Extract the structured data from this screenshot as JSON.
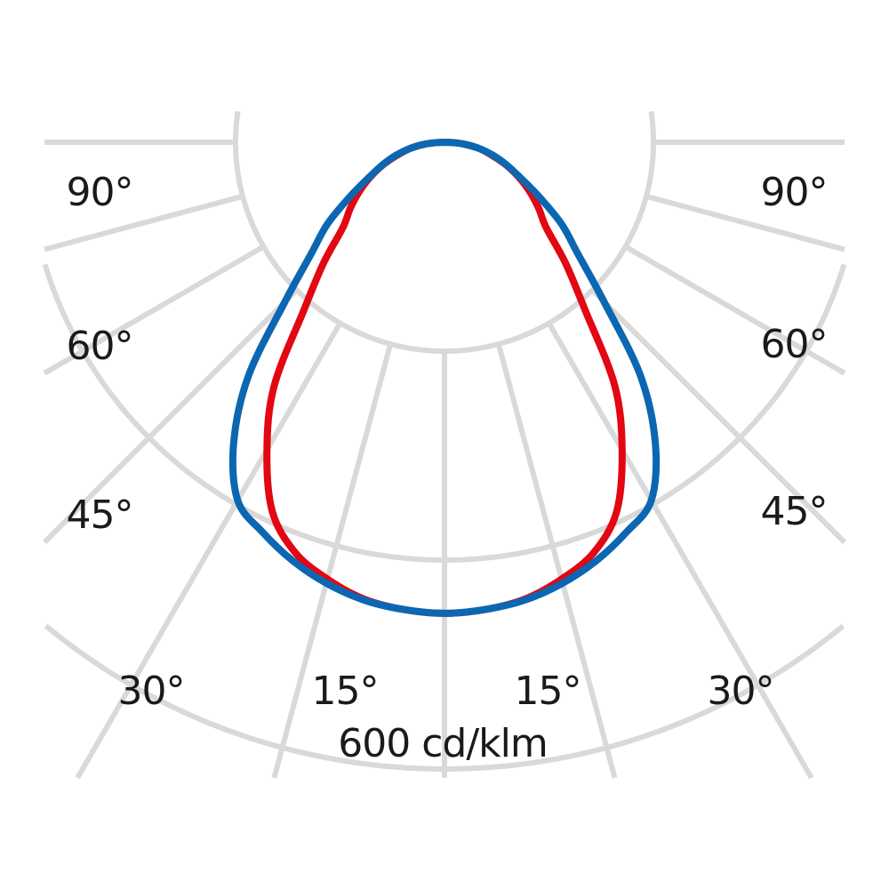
{
  "chart_data": {
    "type": "polar-line",
    "unit_label": "600 cd/klm",
    "angle_ticks": {
      "left": [
        "90°",
        "60°",
        "45°",
        "30°",
        "15°"
      ],
      "right": [
        "90°",
        "60°",
        "45°",
        "30°",
        "15°"
      ]
    },
    "grid": true,
    "angle_step_deg": 15,
    "ring_values": [
      200,
      400,
      600
    ],
    "symmetric": true,
    "angles_deg": [
      0,
      5,
      10,
      15,
      20,
      25,
      30,
      35,
      40,
      45,
      50,
      55,
      60,
      65,
      70,
      75,
      80,
      85,
      90
    ],
    "series": [
      {
        "color": "#e30613",
        "values": [
          451,
          449,
          444,
          433,
          418,
          390,
          340,
          284,
          209,
          164,
          127,
          110,
          94,
          78,
          62,
          46,
          33,
          17,
          0
        ]
      },
      {
        "color": "#0b67b2",
        "values": [
          451,
          449,
          445,
          437,
          426,
          412,
          396,
          352,
          292,
          216,
          167,
          137,
          105,
          80,
          63,
          48,
          33,
          17,
          0
        ]
      }
    ]
  },
  "colors": {
    "grid": "#d9d9d9",
    "text": "#1a1a1a"
  }
}
